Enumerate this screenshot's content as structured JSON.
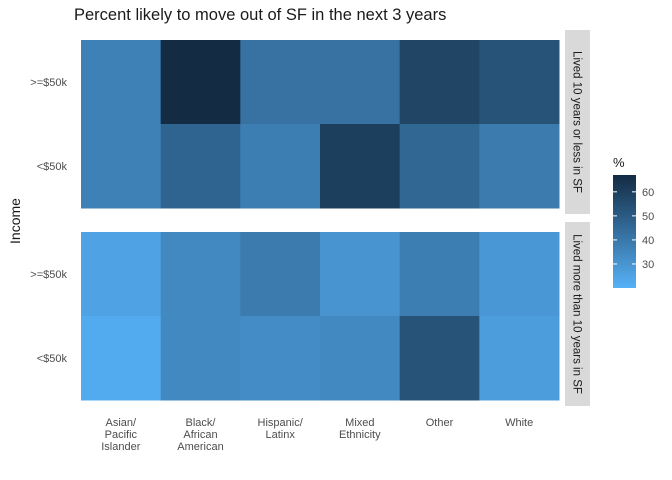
{
  "chart_data": {
    "type": "heatmap",
    "title": "Percent likely to move out of SF in the next 3 years",
    "xlabel": "",
    "ylabel": "Income",
    "x_categories": [
      "Asian/\nPacific\nIslander",
      "Black/\nAfrican\nAmerican",
      "Hispanic/\nLatinx",
      "Mixed\nEthnicity",
      "Other",
      "White"
    ],
    "y_categories": [
      ">=$50k",
      "<$50k"
    ],
    "facets": [
      {
        "label": "Lived 10 years or less in SF",
        "rows": [
          {
            "y": ">=$50k",
            "values": [
              37,
              68,
              42,
              42,
              58,
              53
            ]
          },
          {
            "y": "<$50k",
            "values": [
              37,
              47,
              38,
              60,
              46,
              39
            ]
          }
        ]
      },
      {
        "label": "Lived more than 10 years in SF",
        "rows": [
          {
            "y": ">=$50k",
            "values": [
              25,
              34,
              39,
              30,
              38,
              29
            ]
          },
          {
            "y": "<$50k",
            "values": [
              22,
              34,
              33,
              34,
              53,
              27
            ]
          }
        ]
      }
    ],
    "legend": {
      "title": "%",
      "ticks": [
        30,
        40,
        50,
        60
      ],
      "range": [
        20,
        67
      ],
      "low_color": "#56b1f7",
      "high_color": "#132b43",
      "placement": "right"
    },
    "grid": false
  }
}
